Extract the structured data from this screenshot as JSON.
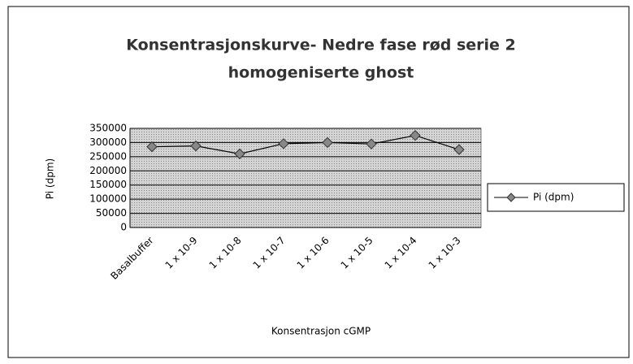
{
  "chart_data": {
    "type": "line",
    "title": "Konsentrasjonskurve- Nedre fase rød serie 2 homogeniserte ghost",
    "x_label": "Konsentrasjon cGMP",
    "y_label": "Pi (dpm)",
    "categories": [
      "Basalbuffer",
      "1 x 10-9",
      "1 x 10-8",
      "1 x 10-7",
      "1 x 10-6",
      "1 x 10-5",
      "1 x 10-4",
      "1 x 10-3"
    ],
    "series": [
      {
        "name": "Pi (dpm)",
        "color": "#000000",
        "values": [
          285000,
          288000,
          260000,
          296000,
          300000,
          295000,
          325000,
          275000
        ]
      }
    ],
    "ylim": [
      0,
      350000
    ],
    "yticks": [
      0,
      50000,
      100000,
      150000,
      200000,
      250000,
      300000,
      350000
    ],
    "grid": true,
    "legend": "right"
  }
}
